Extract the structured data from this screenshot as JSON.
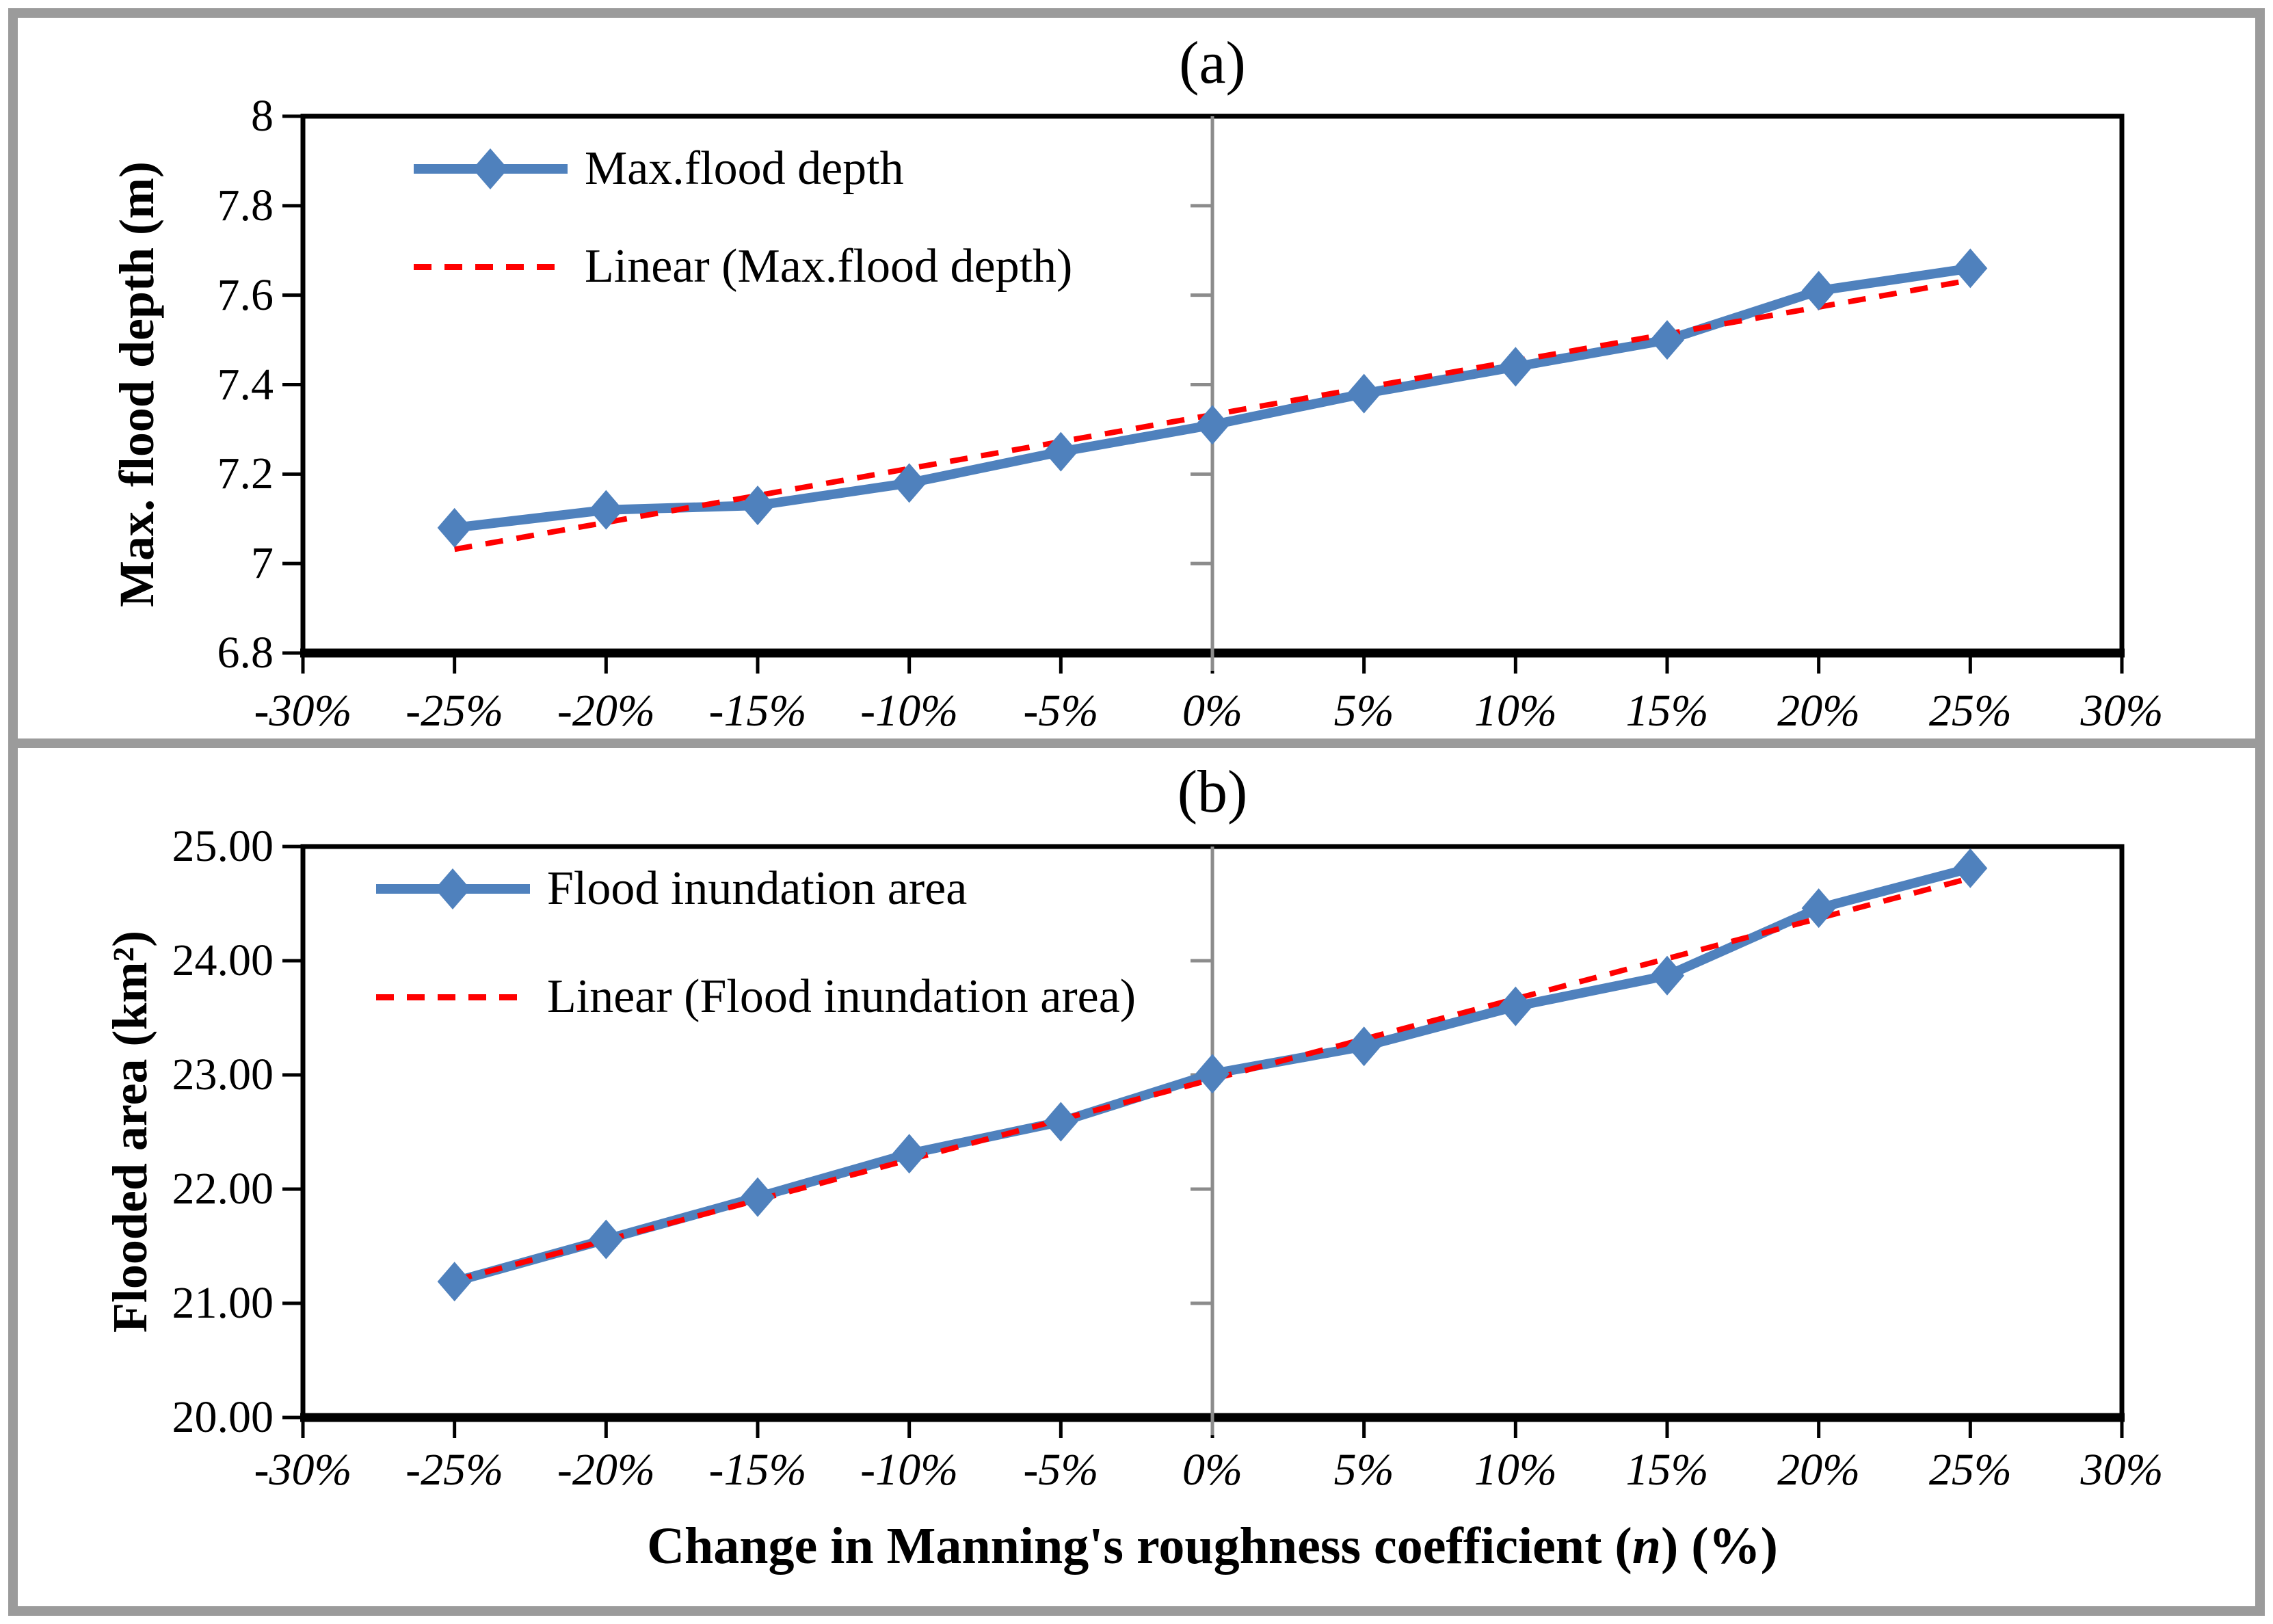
{
  "figure": {
    "x_axis_title": {
      "pre": "Change in Manning's roughness coefficient (",
      "var": "n",
      "post": ") (%)"
    }
  },
  "chart_data": [
    {
      "type": "line",
      "title": "(a)",
      "y_label": "Max. flood depth (m)",
      "x_label": "Change in Manning's roughness coefficient (n) (%)",
      "legend_position": "top-left",
      "categories": [
        "-30%",
        "-25%",
        "-20%",
        "-15%",
        "-10%",
        "-5%",
        "0%",
        "5%",
        "10%",
        "15%",
        "20%",
        "25%",
        "30%"
      ],
      "x": [
        -25,
        -20,
        -15,
        -10,
        -5,
        0,
        5,
        10,
        15,
        20,
        25
      ],
      "series": [
        {
          "name": "Max.flood depth",
          "values": [
            7.08,
            7.12,
            7.13,
            7.18,
            7.25,
            7.31,
            7.38,
            7.44,
            7.5,
            7.61,
            7.66
          ]
        }
      ],
      "trendline": {
        "name": "Linear (Max.flood depth)",
        "type": "linear"
      },
      "xlim": [
        -30,
        30
      ],
      "ylim": [
        6.8,
        8.0
      ],
      "y_ticks": [
        "8",
        "7.8",
        "7.6",
        "7.4",
        "7.2",
        "7",
        "6.8"
      ],
      "grid": "center-vertical-only",
      "colors": {
        "series": "#4F81BD",
        "trend": "#FF0000"
      }
    },
    {
      "type": "line",
      "title": "(b)",
      "y_label": "Flooded area (km²)",
      "x_label": "Change in Manning's roughness coefficient (n) (%)",
      "legend_position": "top-left",
      "categories": [
        "-30%",
        "-25%",
        "-20%",
        "-15%",
        "-10%",
        "-5%",
        "0%",
        "5%",
        "10%",
        "15%",
        "20%",
        "25%",
        "30%"
      ],
      "x": [
        -25,
        -20,
        -15,
        -10,
        -5,
        0,
        5,
        10,
        15,
        20,
        25
      ],
      "series": [
        {
          "name": "Flood inundation area",
          "values": [
            21.19,
            21.56,
            21.93,
            22.31,
            22.59,
            23.01,
            23.25,
            23.6,
            23.87,
            24.46,
            24.81
          ]
        }
      ],
      "trendline": {
        "name": "Linear (Flood inundation area)",
        "type": "linear"
      },
      "xlim": [
        -30,
        30
      ],
      "ylim": [
        20.0,
        25.0
      ],
      "y_ticks": [
        "25.00",
        "24.00",
        "23.00",
        "22.00",
        "21.00",
        "20.00"
      ],
      "grid": "center-vertical-only",
      "colors": {
        "series": "#4F81BD",
        "trend": "#FF0000"
      }
    }
  ]
}
